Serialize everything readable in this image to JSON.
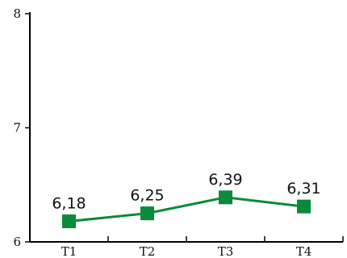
{
  "chart_data": {
    "type": "line",
    "title": "",
    "xlabel": "",
    "ylabel": "",
    "categories": [
      "T1",
      "T2",
      "T3",
      "T4"
    ],
    "series": [
      {
        "values": [
          6.18,
          6.25,
          6.39,
          6.31
        ],
        "labels": [
          "6,18",
          "6,25",
          "6,39",
          "6,31"
        ],
        "color": "#0a8a3a",
        "marker": "square"
      }
    ],
    "ylim": [
      6,
      8
    ],
    "yticks": [
      6,
      7,
      8
    ],
    "ytick_labels": [
      "6",
      "7",
      "8"
    ],
    "grid": false,
    "legend": "none"
  }
}
